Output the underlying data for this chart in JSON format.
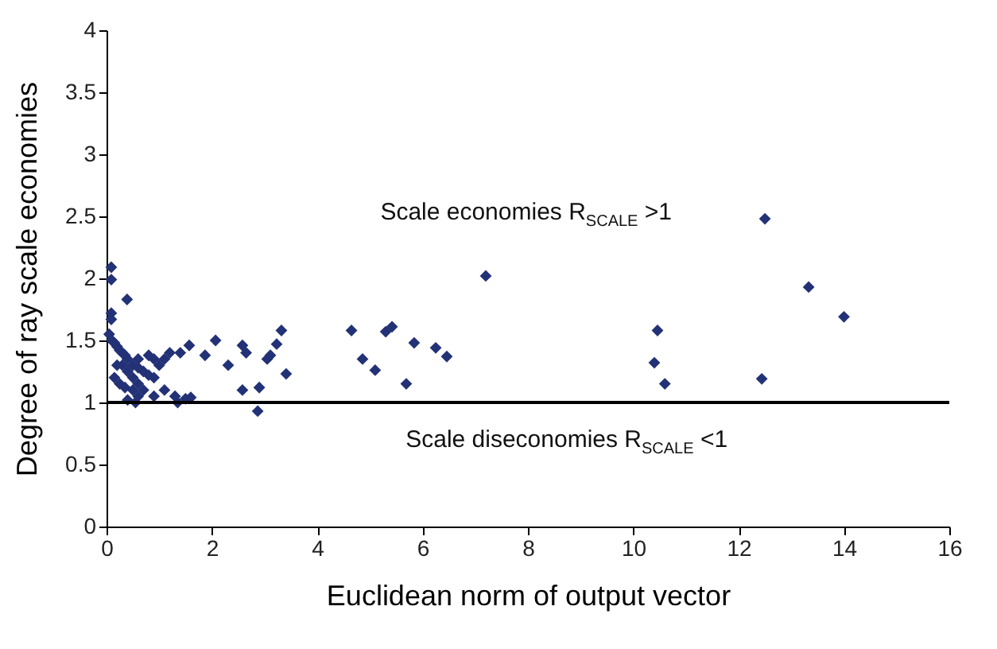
{
  "chart_data": {
    "type": "scatter",
    "xlabel": "Euclidean norm  of output vector",
    "ylabel": "Degree of ray scale economies",
    "xlim": [
      0,
      16
    ],
    "xticks": [
      0,
      2,
      4,
      6,
      8,
      10,
      12,
      14,
      16
    ],
    "ylim": [
      0,
      4
    ],
    "yticks": [
      0,
      0.5,
      1,
      1.5,
      2,
      2.5,
      3,
      3.5,
      4
    ],
    "grid": false,
    "marker": "diamond",
    "ref_lines": [
      {
        "axis": "y",
        "value": 1,
        "color": "#000000"
      }
    ],
    "annotations": [
      "Scale economies  R$_{SCALE}$ >1",
      "Scale diseconomies  R$_{SCALE}$ <1"
    ],
    "series": [
      {
        "color": "#233276",
        "x": [
          0.09,
          0.09,
          0.39,
          0.09,
          0.09,
          0.05,
          0.1,
          0.15,
          0.2,
          0.25,
          0.3,
          0.35,
          0.4,
          0.5,
          0.6,
          0.7,
          0.8,
          0.3,
          0.4,
          0.5,
          0.25,
          0.35,
          0.5,
          0.6,
          0.7,
          0.9,
          1.0,
          1.1,
          1.2,
          1.4,
          0.9,
          0.8,
          0.6,
          0.2,
          0.15,
          0.4,
          0.55,
          0.6,
          0.9,
          1.1,
          1.3,
          1.35,
          1.5,
          1.6,
          1.57,
          2.07,
          1.87,
          2.31,
          2.58,
          2.65,
          2.58,
          2.9,
          2.87,
          3.05,
          3.11,
          3.23,
          3.32,
          3.41,
          4.65,
          4.86,
          5.1,
          5.3,
          5.42,
          5.69,
          5.84,
          6.25,
          6.46,
          7.2,
          10.4,
          10.46,
          10.6,
          12.44,
          12.5,
          13.33,
          14.0
        ],
        "values": [
          2.09,
          1.99,
          1.83,
          1.72,
          1.67,
          1.55,
          1.5,
          1.48,
          1.45,
          1.42,
          1.4,
          1.38,
          1.35,
          1.3,
          1.28,
          1.25,
          1.22,
          1.3,
          1.25,
          1.2,
          1.15,
          1.12,
          1.1,
          1.15,
          1.1,
          1.2,
          1.3,
          1.35,
          1.4,
          1.4,
          1.35,
          1.38,
          1.35,
          1.3,
          1.2,
          1.02,
          1.0,
          1.05,
          1.05,
          1.1,
          1.05,
          1.0,
          1.03,
          1.04,
          1.46,
          1.5,
          1.38,
          1.3,
          1.46,
          1.4,
          1.1,
          1.12,
          0.93,
          1.35,
          1.38,
          1.47,
          1.58,
          1.23,
          1.58,
          1.35,
          1.26,
          1.57,
          1.61,
          1.15,
          1.48,
          1.44,
          1.37,
          2.02,
          1.32,
          1.58,
          1.15,
          1.19,
          2.48,
          1.93,
          1.69
        ]
      }
    ]
  }
}
